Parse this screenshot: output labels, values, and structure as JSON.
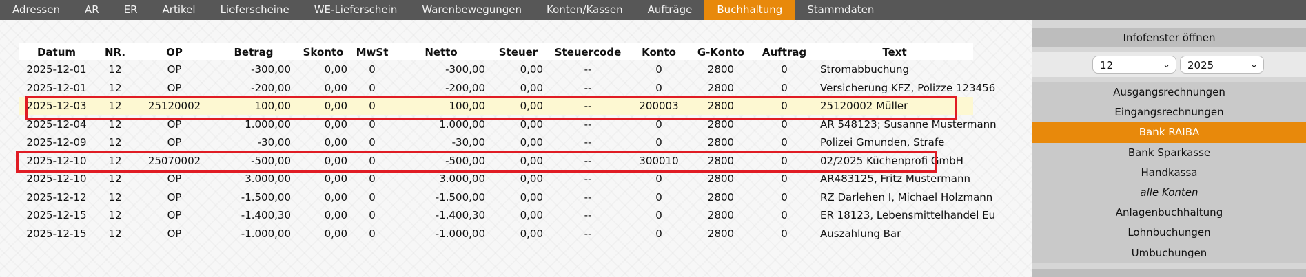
{
  "nav": [
    {
      "label": "Adressen",
      "active": false
    },
    {
      "label": "AR",
      "active": false
    },
    {
      "label": "ER",
      "active": false
    },
    {
      "label": "Artikel",
      "active": false
    },
    {
      "label": "Lieferscheine",
      "active": false
    },
    {
      "label": "WE-Lieferschein",
      "active": false
    },
    {
      "label": "Warenbewegungen",
      "active": false
    },
    {
      "label": "Konten/Kassen",
      "active": false
    },
    {
      "label": "Aufträge",
      "active": false
    },
    {
      "label": "Buchhaltung",
      "active": true
    },
    {
      "label": "Stammdaten",
      "active": false
    }
  ],
  "table": {
    "headers": [
      "Datum",
      "NR.",
      "OP",
      "Betrag",
      "Skonto",
      "MwSt",
      "Netto",
      "Steuer",
      "Steuercode",
      "Konto",
      "G-Konto",
      "Auftrag",
      "Text"
    ],
    "rows": [
      {
        "datum": "2025-12-01",
        "nr": "12",
        "op": "OP",
        "betrag": "-300,00",
        "skonto": "0,00",
        "mwst": "0",
        "netto": "-300,00",
        "steuer": "0,00",
        "steuercode": "--",
        "konto": "0",
        "gkonto": "2800",
        "auftrag": "0",
        "text": "Stromabbuchung",
        "highlight": false
      },
      {
        "datum": "2025-12-01",
        "nr": "12",
        "op": "OP",
        "betrag": "-200,00",
        "skonto": "0,00",
        "mwst": "0",
        "netto": "-200,00",
        "steuer": "0,00",
        "steuercode": "--",
        "konto": "0",
        "gkonto": "2800",
        "auftrag": "0",
        "text": "Versicherung KFZ, Polizze 123456",
        "highlight": false
      },
      {
        "datum": "2025-12-03",
        "nr": "12",
        "op": "25120002",
        "betrag": "100,00",
        "skonto": "0,00",
        "mwst": "0",
        "netto": "100,00",
        "steuer": "0,00",
        "steuercode": "--",
        "konto": "200003",
        "gkonto": "2800",
        "auftrag": "0",
        "text": "25120002 Müller",
        "highlight": true
      },
      {
        "datum": "2025-12-04",
        "nr": "12",
        "op": "OP",
        "betrag": "1.000,00",
        "skonto": "0,00",
        "mwst": "0",
        "netto": "1.000,00",
        "steuer": "0,00",
        "steuercode": "--",
        "konto": "0",
        "gkonto": "2800",
        "auftrag": "0",
        "text": "AR 548123; Susanne Mustermann",
        "highlight": false
      },
      {
        "datum": "2025-12-09",
        "nr": "12",
        "op": "OP",
        "betrag": "-30,00",
        "skonto": "0,00",
        "mwst": "0",
        "netto": "-30,00",
        "steuer": "0,00",
        "steuercode": "--",
        "konto": "0",
        "gkonto": "2800",
        "auftrag": "0",
        "text": "Polizei Gmunden, Strafe",
        "highlight": false
      },
      {
        "datum": "2025-12-10",
        "nr": "12",
        "op": "25070002",
        "betrag": "-500,00",
        "skonto": "0,00",
        "mwst": "0",
        "netto": "-500,00",
        "steuer": "0,00",
        "steuercode": "--",
        "konto": "300010",
        "gkonto": "2800",
        "auftrag": "0",
        "text": "02/2025 Küchenprofi GmbH",
        "highlight": false
      },
      {
        "datum": "2025-12-10",
        "nr": "12",
        "op": "OP",
        "betrag": "3.000,00",
        "skonto": "0,00",
        "mwst": "0",
        "netto": "3.000,00",
        "steuer": "0,00",
        "steuercode": "--",
        "konto": "0",
        "gkonto": "2800",
        "auftrag": "0",
        "text": "AR483125, Fritz Mustermann",
        "highlight": false
      },
      {
        "datum": "2025-12-12",
        "nr": "12",
        "op": "OP",
        "betrag": "-1.500,00",
        "skonto": "0,00",
        "mwst": "0",
        "netto": "-1.500,00",
        "steuer": "0,00",
        "steuercode": "--",
        "konto": "0",
        "gkonto": "2800",
        "auftrag": "0",
        "text": "RZ Darlehen I, Michael Holzmann",
        "highlight": false
      },
      {
        "datum": "2025-12-15",
        "nr": "12",
        "op": "OP",
        "betrag": "-1.400,30",
        "skonto": "0,00",
        "mwst": "0",
        "netto": "-1.400,30",
        "steuer": "0,00",
        "steuercode": "--",
        "konto": "0",
        "gkonto": "2800",
        "auftrag": "0",
        "text": "ER 18123, Lebensmittelhandel Eu",
        "highlight": false
      },
      {
        "datum": "2025-12-15",
        "nr": "12",
        "op": "OP",
        "betrag": "-1.000,00",
        "skonto": "0,00",
        "mwst": "0",
        "netto": "-1.000,00",
        "steuer": "0,00",
        "steuercode": "--",
        "konto": "0",
        "gkonto": "2800",
        "auftrag": "0",
        "text": "Auszahlung Bar",
        "highlight": false
      }
    ]
  },
  "sidebar": {
    "info_button": "Infofenster öffnen",
    "month": "12",
    "year": "2025",
    "menu": [
      {
        "label": "Ausgangsrechnungen",
        "active": false,
        "italic": false
      },
      {
        "label": "Eingangsrechnungen",
        "active": false,
        "italic": false
      },
      {
        "label": "Bank RAIBA",
        "active": true,
        "italic": false
      },
      {
        "label": "Bank Sparkasse",
        "active": false,
        "italic": false
      },
      {
        "label": "Handkassa",
        "active": false,
        "italic": false
      },
      {
        "label": "alle Konten",
        "active": false,
        "italic": true
      },
      {
        "label": "Anlagenbuchhaltung",
        "active": false,
        "italic": false
      },
      {
        "label": "Lohnbuchungen",
        "active": false,
        "italic": false
      },
      {
        "label": "Umbuchungen",
        "active": false,
        "italic": false
      }
    ]
  },
  "colors": {
    "accent": "#e8890b",
    "nav_bg": "#575757",
    "highlight_row": "#fdf8d2",
    "marker": "#e01c24"
  }
}
